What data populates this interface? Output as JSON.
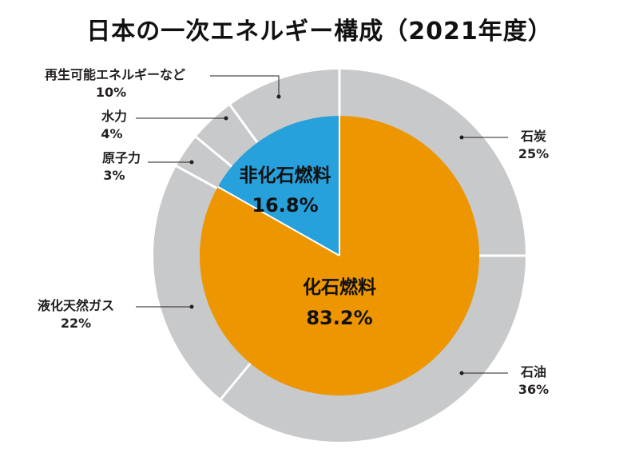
{
  "title": "日本の一次エネルギー構成（2021年度）",
  "colors": {
    "outer_ring": "#c8c9ca",
    "fossil": "#ed9600",
    "non_fossil": "#27a1db",
    "divider": "#ffffff",
    "leader": "#231f20"
  },
  "chart_data": {
    "type": "pie",
    "title": "日本の一次エネルギー構成（2021年度）",
    "inner_ring": [
      {
        "label": "非化石燃料",
        "value": 16.8,
        "display": "16.8%"
      },
      {
        "label": "化石燃料",
        "value": 83.2,
        "display": "83.2%"
      }
    ],
    "outer_ring": [
      {
        "label": "石炭",
        "value": 25,
        "display": "25%"
      },
      {
        "label": "石油",
        "value": 36,
        "display": "36%"
      },
      {
        "label": "液化天然ガス",
        "value": 22,
        "display": "22%"
      },
      {
        "label": "原子力",
        "value": 3,
        "display": "3%"
      },
      {
        "label": "水力",
        "value": 4,
        "display": "4%"
      },
      {
        "label": "再生可能エネルギーなど",
        "value": 10,
        "display": "10%"
      }
    ]
  }
}
